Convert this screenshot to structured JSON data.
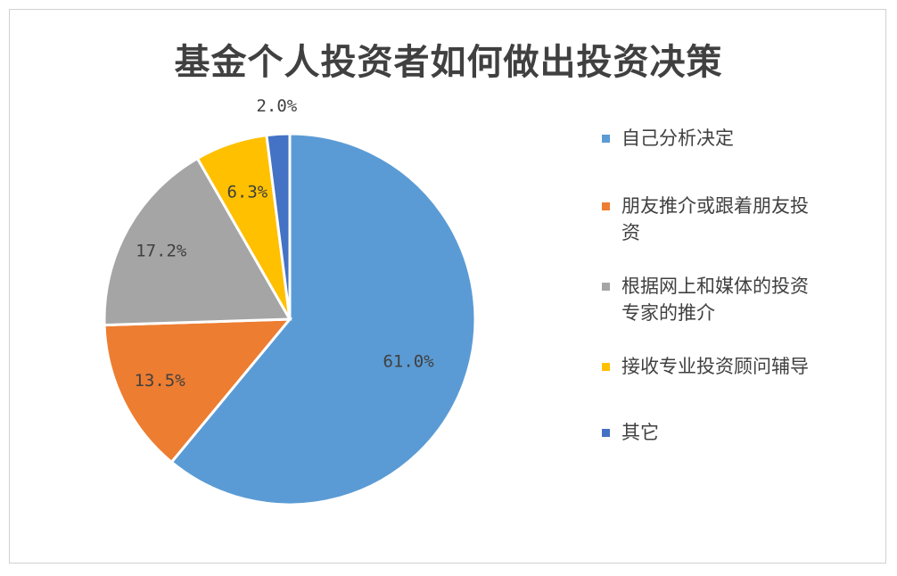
{
  "chart_data": {
    "type": "pie",
    "title": "基金个人投资者如何做出投资决策",
    "categories": [
      "自己分析决定",
      "朋友推介或跟着朋友投资",
      "根据网上和媒体的投资专家的推介",
      "接收专业投资顾问辅导",
      "其它"
    ],
    "values": [
      61.0,
      13.5,
      17.2,
      6.3,
      2.0
    ],
    "labels": [
      "61.0%",
      "13.5%",
      "17.2%",
      "6.3%",
      "2.0%"
    ],
    "colors": [
      "#5b9bd5",
      "#ed7d31",
      "#a5a5a5",
      "#ffc000",
      "#4472c4"
    ],
    "legend": {
      "position": "right",
      "lines": [
        [
          "自己分析决定"
        ],
        [
          "朋友推介或跟着朋友投",
          "资"
        ],
        [
          "根据网上和媒体的投资",
          "专家的推介"
        ],
        [
          "接收专业投资顾问辅导"
        ],
        [
          "其它"
        ]
      ]
    }
  }
}
